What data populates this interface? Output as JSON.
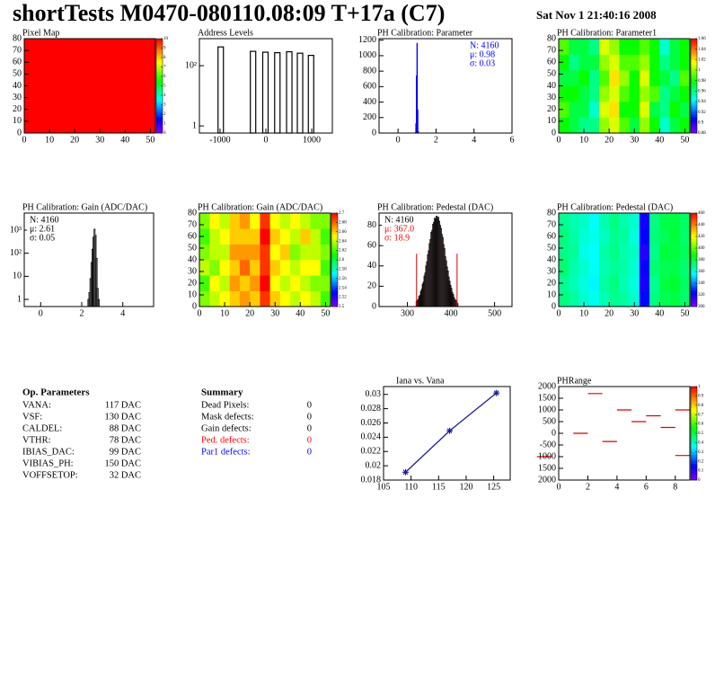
{
  "header": {
    "title": "shortTests M0470-080110.08:09 T+17a (C7)",
    "date": "Sat Nov  1 21:40:16 2008"
  },
  "op_parameters": {
    "title": "Op. Parameters",
    "rows": [
      {
        "label": "VANA:",
        "value": "117 DAC"
      },
      {
        "label": "VSF:",
        "value": "130 DAC"
      },
      {
        "label": "CALDEL:",
        "value": "88 DAC"
      },
      {
        "label": "VTHR:",
        "value": "78 DAC"
      },
      {
        "label": "IBIAS_DAC:",
        "value": "99 DAC"
      },
      {
        "label": "VIBIAS_PH:",
        "value": "150 DAC"
      },
      {
        "label": "VOFFSETOP:",
        "value": "32 DAC"
      }
    ]
  },
  "summary": {
    "title": "Summary",
    "rows": [
      {
        "label": "Dead Pixels:",
        "value": 0,
        "color": "#000000"
      },
      {
        "label": "Mask defects:",
        "value": 0,
        "color": "#000000"
      },
      {
        "label": "Gain defects:",
        "value": 0,
        "color": "#000000"
      },
      {
        "label": "Ped. defects:",
        "value": 0,
        "color": "#ff0000"
      },
      {
        "label": "Par1 defects:",
        "value": 0,
        "color": "#0000ff"
      }
    ]
  },
  "chart_data": [
    {
      "type": "heatmap",
      "title": "Pixel Map",
      "xlim": [
        0,
        52
      ],
      "ylim": [
        0,
        80
      ],
      "xticks": [
        0,
        10,
        20,
        30,
        40,
        50
      ],
      "yticks": [
        0,
        10,
        20,
        30,
        40,
        50,
        60,
        70,
        80
      ],
      "zlim": [
        0,
        10
      ],
      "zticks": [
        0,
        1,
        2,
        3,
        4,
        5,
        6,
        7,
        8,
        9,
        10
      ],
      "z": [
        [
          10
        ]
      ]
    },
    {
      "type": "spikes",
      "title": "Address Levels",
      "log_y": true,
      "xlim": [
        -1450,
        1450
      ],
      "ylim": [
        0.58,
        790
      ],
      "xticks": [
        -1000,
        0,
        1000
      ],
      "yticks": [
        1,
        {
          "value": 100,
          "label": "10²"
        }
      ],
      "x": [
        -985,
        -280,
        -10,
        250,
        510,
        745,
        985
      ],
      "values": [
        420,
        300,
        280,
        270,
        290,
        260,
        220
      ],
      "color": "#000000"
    },
    {
      "type": "histogram",
      "title": "PH Calibration: Parameter",
      "xlim": [
        -1,
        6
      ],
      "ylim": [
        0,
        1220
      ],
      "xticks": [
        0,
        2,
        4,
        6
      ],
      "yticks": [
        0,
        200,
        400,
        600,
        800,
        1000,
        1200
      ],
      "bins": [
        0.9,
        0.93,
        0.96,
        0.99,
        1.02,
        1.05,
        1.08
      ],
      "values": [
        5,
        120,
        740,
        1160,
        300,
        20
      ],
      "color": "#0000ff",
      "fill": "#0000ff",
      "stats_corner": "top-right",
      "stats": [
        {
          "text": "N: 4160",
          "color": "#0000ff"
        },
        {
          "text": "μ: 0.98",
          "color": "#0000ff"
        },
        {
          "text": "σ: 0.03",
          "color": "#0000ff"
        }
      ]
    },
    {
      "type": "heatmap",
      "title": "PH Calibration: Parameter1",
      "xlim": [
        0,
        52
      ],
      "ylim": [
        0,
        80
      ],
      "xticks": [
        0,
        10,
        20,
        30,
        40,
        50
      ],
      "yticks": [
        0,
        10,
        20,
        30,
        40,
        50,
        60,
        70,
        80
      ],
      "zlim": [
        0.88,
        1.06
      ],
      "zticks": [
        0.88,
        0.9,
        0.92,
        0.94,
        0.96,
        0.98,
        1,
        1.02,
        1.04,
        1.06
      ],
      "z": [
        [
          0.98,
          0.97,
          0.96,
          0.96,
          1.0,
          1.01,
          0.99,
          0.97,
          1.0,
          0.98,
          0.95,
          0.97,
          0.98
        ],
        [
          0.99,
          0.97,
          0.97,
          0.95,
          1.01,
          1.02,
          0.98,
          0.98,
          1.01,
          0.97,
          0.96,
          0.98,
          0.97
        ],
        [
          0.98,
          0.98,
          0.97,
          0.96,
          1.0,
          1.01,
          0.99,
          0.98,
          1.0,
          0.99,
          0.96,
          0.97,
          0.98
        ],
        [
          0.97,
          0.97,
          0.98,
          0.96,
          0.99,
          1.02,
          1.0,
          0.98,
          1.01,
          0.98,
          0.97,
          0.96,
          0.99
        ],
        [
          0.98,
          0.96,
          0.97,
          0.97,
          1.0,
          1.01,
          0.99,
          0.99,
          1.0,
          0.98,
          0.96,
          0.97,
          0.98
        ],
        [
          0.99,
          0.97,
          0.97,
          0.96,
          1.01,
          1.0,
          0.98,
          0.98,
          0.99,
          0.98,
          0.95,
          0.97,
          0.98
        ]
      ]
    },
    {
      "type": "histogram",
      "title": "PH Calibration: Gain (ADC/DAC)",
      "log_y": true,
      "xlim": [
        -0.8,
        5.5
      ],
      "ylim": [
        0.49,
        5500
      ],
      "xticks": [
        0,
        2,
        4
      ],
      "yticks": [
        1,
        10,
        {
          "value": 100,
          "label": "10²"
        },
        {
          "value": 1000,
          "label": "10³"
        }
      ],
      "bins": [
        2.3,
        2.35,
        2.4,
        2.45,
        2.5,
        2.55,
        2.6,
        2.65,
        2.7,
        2.75,
        2.8,
        2.85
      ],
      "values": [
        1,
        2,
        8,
        40,
        150,
        500,
        1100,
        600,
        60,
        3,
        1
      ],
      "color": "#000000",
      "stats_corner": "top-left",
      "stats": [
        {
          "text": "N: 4160",
          "color": "#000000"
        },
        {
          "text": "μ: 2.61",
          "color": "#000000"
        },
        {
          "text": "σ: 0.05",
          "color": "#000000"
        }
      ]
    },
    {
      "type": "heatmap",
      "title": "PH Calibration: Gain (ADC/DAC)",
      "xlim": [
        0,
        52
      ],
      "ylim": [
        0,
        80
      ],
      "xticks": [
        0,
        10,
        20,
        30,
        40,
        50
      ],
      "yticks": [
        0,
        10,
        20,
        30,
        40,
        50,
        60,
        70,
        80
      ],
      "zlim": [
        2.5,
        2.7
      ],
      "zticks": [
        2.5,
        2.52,
        2.54,
        2.56,
        2.58,
        2.6,
        2.62,
        2.64,
        2.66,
        2.68,
        2.7
      ],
      "z": [
        [
          2.63,
          2.64,
          2.65,
          2.66,
          2.67,
          2.66,
          2.69,
          2.66,
          2.65,
          2.64,
          2.65,
          2.64,
          2.62
        ],
        [
          2.62,
          2.65,
          2.64,
          2.67,
          2.66,
          2.67,
          2.7,
          2.65,
          2.64,
          2.65,
          2.64,
          2.63,
          2.63
        ],
        [
          2.64,
          2.63,
          2.65,
          2.66,
          2.68,
          2.66,
          2.69,
          2.66,
          2.65,
          2.64,
          2.65,
          2.65,
          2.62
        ],
        [
          2.63,
          2.64,
          2.64,
          2.67,
          2.67,
          2.67,
          2.69,
          2.65,
          2.66,
          2.63,
          2.64,
          2.64,
          2.63
        ],
        [
          2.62,
          2.64,
          2.65,
          2.66,
          2.66,
          2.66,
          2.7,
          2.66,
          2.65,
          2.64,
          2.66,
          2.64,
          2.62
        ],
        [
          2.63,
          2.65,
          2.64,
          2.66,
          2.67,
          2.65,
          2.69,
          2.65,
          2.64,
          2.65,
          2.64,
          2.63,
          2.63
        ]
      ]
    },
    {
      "type": "histogram",
      "title": "PH Calibration: Pedestal (DAC)",
      "xlim": [
        235,
        540
      ],
      "ylim": [
        0,
        92
      ],
      "xticks": [
        300,
        400,
        500
      ],
      "yticks": [
        0,
        20,
        40,
        60,
        80
      ],
      "bins": [
        320,
        322,
        324,
        326,
        328,
        330,
        332,
        334,
        336,
        338,
        340,
        342,
        344,
        346,
        348,
        350,
        352,
        354,
        356,
        358,
        360,
        362,
        364,
        366,
        368,
        370,
        372,
        374,
        376,
        378,
        380,
        382,
        384,
        386,
        388,
        390,
        392,
        394,
        396,
        398,
        400,
        402,
        404,
        406,
        408,
        410,
        412,
        414,
        416
      ],
      "values": [
        5,
        6,
        7,
        10,
        11,
        15,
        17,
        22,
        24,
        30,
        33,
        40,
        44,
        51,
        55,
        62,
        66,
        73,
        75,
        81,
        83,
        87,
        86,
        89,
        86,
        88,
        84,
        80,
        77,
        71,
        68,
        61,
        57,
        49,
        45,
        39,
        35,
        29,
        25,
        21,
        18,
        14,
        12,
        9,
        7,
        6,
        4,
        3
      ],
      "color": "#000000",
      "fill": "#f2c4c4",
      "stats_corner": "top-left",
      "markers": [
        {
          "x": 321,
          "y": 52
        },
        {
          "x": 414,
          "y": 52
        }
      ],
      "marker_color": "#e00000",
      "stats": [
        {
          "text": "N: 4160",
          "color": "#000000"
        },
        {
          "text": "μ: 367.0",
          "color": "#ff0000"
        },
        {
          "text": "σ: 18.9",
          "color": "#ff0000"
        }
      ]
    },
    {
      "type": "heatmap",
      "title": "PH Calibration: Pedestal (DAC)",
      "xlim": [
        0,
        52
      ],
      "ylim": [
        0,
        80
      ],
      "xticks": [
        0,
        10,
        20,
        30,
        40,
        50
      ],
      "yticks": [
        0,
        10,
        20,
        30,
        40,
        50,
        60,
        70,
        80
      ],
      "zlim": [
        300,
        460
      ],
      "zticks": [
        300,
        320,
        340,
        360,
        380,
        400,
        420,
        440,
        460
      ],
      "z": [
        [
          372,
          368,
          362,
          358,
          365,
          370,
          368,
          362,
          325,
          372,
          378,
          380,
          375
        ],
        [
          370,
          365,
          360,
          355,
          368,
          372,
          365,
          360,
          320,
          370,
          380,
          382,
          376
        ],
        [
          374,
          366,
          362,
          357,
          366,
          369,
          367,
          361,
          322,
          374,
          378,
          379,
          374
        ],
        [
          371,
          369,
          359,
          356,
          367,
          371,
          366,
          363,
          318,
          371,
          381,
          380,
          377
        ],
        [
          373,
          367,
          361,
          358,
          364,
          370,
          368,
          360,
          324,
          373,
          377,
          381,
          375
        ],
        [
          370,
          366,
          363,
          357,
          366,
          372,
          366,
          362,
          321,
          372,
          379,
          380,
          376
        ]
      ]
    },
    {
      "type": "scatter",
      "title": "Iana vs. Vana",
      "xlim": [
        105,
        128
      ],
      "ylim": [
        0.018,
        0.0311
      ],
      "xticks": [
        105,
        110,
        115,
        120,
        125
      ],
      "yticks": [
        0.018,
        0.02,
        0.022,
        0.024,
        0.026,
        0.028,
        0.03
      ],
      "x": [
        109,
        117,
        125.5
      ],
      "values": [
        0.0191,
        0.0249,
        0.0302
      ],
      "color": "#1a1aa0"
    },
    {
      "type": "dashes",
      "title": "PHRange",
      "xlim": [
        0,
        9
      ],
      "ylim": [
        -2000,
        2000
      ],
      "xticks": [
        0,
        2,
        4,
        6,
        8
      ],
      "yticks": [
        {
          "value": -2000,
          "label": "2000"
        },
        {
          "value": -1500,
          "label": "1500"
        },
        {
          "value": -1000,
          "label": "1000"
        },
        -500,
        0,
        500,
        1000,
        1500,
        2000
      ],
      "x": [
        -1.5,
        1,
        2,
        3,
        4,
        5,
        6,
        7,
        8,
        8
      ],
      "values": [
        -1000,
        0,
        1700,
        -350,
        1000,
        500,
        750,
        250,
        1000,
        -950
      ],
      "color": "#dd0000",
      "zlim": [
        0,
        1
      ],
      "zticks": [
        0,
        0.1,
        0.2,
        0.3,
        0.4,
        0.5,
        0.6,
        0.7,
        0.8,
        0.9,
        1
      ]
    }
  ]
}
